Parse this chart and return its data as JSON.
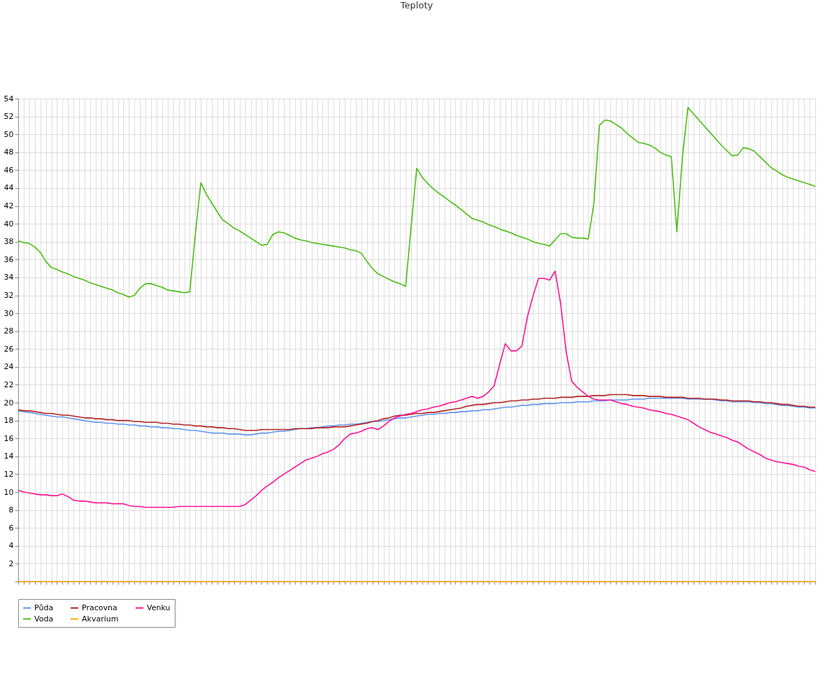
{
  "chart_data": {
    "type": "line",
    "title": "Teploty",
    "categories": [
      null,
      null,
      null,
      null,
      null,
      null,
      null,
      null,
      null,
      null,
      null,
      null,
      null,
      null,
      null,
      null,
      null,
      null,
      null,
      null,
      null,
      null,
      null,
      null,
      null,
      null,
      null,
      null,
      null,
      null,
      null,
      null,
      null,
      null,
      null,
      null,
      null,
      null,
      null,
      null,
      null,
      null,
      null,
      null,
      null,
      null,
      null,
      null,
      null,
      null,
      null,
      null,
      null,
      null,
      null,
      null,
      null,
      null,
      null,
      null,
      null,
      null,
      null,
      null,
      null,
      null,
      null,
      null,
      null,
      null,
      null,
      null,
      null,
      null,
      null,
      null,
      null,
      null,
      null,
      null,
      null,
      null,
      null,
      null,
      null,
      null,
      null,
      null,
      null,
      null,
      null,
      null,
      null,
      null,
      null,
      null,
      null,
      null,
      null,
      null,
      null,
      null,
      null,
      null,
      null,
      null,
      null,
      null,
      null,
      null,
      null,
      null,
      null,
      null,
      null,
      null,
      null,
      null,
      null,
      null,
      null,
      null,
      null,
      null,
      null,
      null,
      null,
      null,
      null,
      null,
      null,
      null,
      null,
      null,
      null,
      null,
      null,
      null,
      null,
      null,
      null,
      null,
      null,
      null,
      null
    ],
    "ylim": [
      0,
      54
    ],
    "yticks": [
      {
        "value": 0,
        "label": null
      },
      2,
      4,
      6,
      8,
      10,
      12,
      14,
      16,
      18,
      20,
      22,
      24,
      26,
      28,
      30,
      32,
      34,
      36,
      38,
      40,
      42,
      44,
      46,
      48,
      50,
      52,
      54
    ],
    "grid": true,
    "tick_labels": "y",
    "legend": "bottom",
    "line_style": "solid",
    "marker": "none",
    "series": [
      {
        "name": "Půda",
        "color": "#6495ed",
        "values": [
          19.1,
          19.0,
          18.9,
          18.8,
          18.7,
          18.6,
          18.5,
          18.4,
          18.4,
          18.3,
          18.2,
          18.1,
          18.0,
          17.9,
          17.8,
          17.8,
          17.7,
          17.7,
          17.6,
          17.6,
          17.5,
          17.5,
          17.4,
          17.4,
          17.3,
          17.3,
          17.2,
          17.2,
          17.1,
          17.1,
          17.0,
          16.9,
          16.9,
          16.8,
          16.7,
          16.6,
          16.6,
          16.6,
          16.5,
          16.5,
          16.5,
          16.4,
          16.4,
          16.5,
          16.6,
          16.6,
          16.7,
          16.8,
          16.8,
          16.9,
          17.0,
          17.1,
          17.1,
          17.2,
          17.2,
          17.3,
          17.4,
          17.4,
          17.5,
          17.5,
          17.6,
          17.6,
          17.7,
          17.8,
          17.9,
          17.9,
          18.0,
          18.1,
          18.2,
          18.3,
          18.3,
          18.4,
          18.5,
          18.6,
          18.7,
          18.7,
          18.8,
          18.8,
          18.9,
          18.9,
          19.0,
          19.0,
          19.1,
          19.1,
          19.2,
          19.2,
          19.3,
          19.4,
          19.5,
          19.5,
          19.6,
          19.7,
          19.7,
          19.8,
          19.8,
          19.9,
          19.9,
          19.9,
          20.0,
          20.0,
          20.0,
          20.1,
          20.1,
          20.1,
          20.2,
          20.2,
          20.2,
          20.3,
          20.3,
          20.3,
          20.3,
          20.4,
          20.4,
          20.4,
          20.5,
          20.5,
          20.5,
          20.5,
          20.5,
          20.5,
          20.5,
          20.4,
          20.4,
          20.4,
          20.4,
          20.4,
          20.3,
          20.2,
          20.2,
          20.1,
          20.1,
          20.1,
          20.1,
          20.0,
          20.0,
          19.9,
          19.9,
          19.8,
          19.7,
          19.7,
          19.6,
          19.5,
          19.5,
          19.4,
          19.4
        ]
      },
      {
        "name": "Pracovna",
        "color": "#b22222",
        "values": [
          19.2,
          19.1,
          19.1,
          19.0,
          18.9,
          18.8,
          18.8,
          18.7,
          18.6,
          18.6,
          18.5,
          18.4,
          18.3,
          18.3,
          18.2,
          18.2,
          18.1,
          18.1,
          18.0,
          18.0,
          18.0,
          17.9,
          17.9,
          17.8,
          17.8,
          17.8,
          17.7,
          17.7,
          17.6,
          17.6,
          17.5,
          17.5,
          17.4,
          17.4,
          17.3,
          17.3,
          17.2,
          17.2,
          17.1,
          17.1,
          17.0,
          16.9,
          16.9,
          16.9,
          17.0,
          17.0,
          17.0,
          17.0,
          17.0,
          17.0,
          17.1,
          17.1,
          17.1,
          17.1,
          17.2,
          17.2,
          17.2,
          17.3,
          17.3,
          17.3,
          17.4,
          17.5,
          17.6,
          17.7,
          17.9,
          18.0,
          18.2,
          18.3,
          18.5,
          18.6,
          18.6,
          18.7,
          18.8,
          18.8,
          18.9,
          18.9,
          19.0,
          19.1,
          19.2,
          19.3,
          19.4,
          19.6,
          19.7,
          19.8,
          19.8,
          19.9,
          20.0,
          20.0,
          20.1,
          20.2,
          20.2,
          20.3,
          20.3,
          20.4,
          20.4,
          20.5,
          20.5,
          20.5,
          20.6,
          20.6,
          20.6,
          20.7,
          20.7,
          20.7,
          20.8,
          20.8,
          20.8,
          20.9,
          20.9,
          20.9,
          20.9,
          20.8,
          20.8,
          20.8,
          20.7,
          20.7,
          20.7,
          20.6,
          20.6,
          20.6,
          20.6,
          20.5,
          20.5,
          20.5,
          20.4,
          20.4,
          20.4,
          20.3,
          20.3,
          20.2,
          20.2,
          20.2,
          20.2,
          20.1,
          20.1,
          20.0,
          20.0,
          19.9,
          19.8,
          19.8,
          19.7,
          19.6,
          19.6,
          19.5,
          19.5
        ]
      },
      {
        "name": "Venku",
        "color": "#ff1493",
        "values": [
          10.2,
          10.0,
          9.9,
          9.8,
          9.7,
          9.7,
          9.6,
          9.6,
          9.8,
          9.5,
          9.1,
          9.0,
          9.0,
          8.9,
          8.8,
          8.8,
          8.8,
          8.7,
          8.7,
          8.7,
          8.5,
          8.4,
          8.4,
          8.3,
          8.3,
          8.3,
          8.3,
          8.3,
          8.3,
          8.4,
          8.4,
          8.4,
          8.4,
          8.4,
          8.4,
          8.4,
          8.4,
          8.4,
          8.4,
          8.4,
          8.4,
          8.6,
          9.1,
          9.6,
          10.2,
          10.7,
          11.1,
          11.6,
          12.0,
          12.4,
          12.8,
          13.2,
          13.6,
          13.8,
          14.0,
          14.3,
          14.5,
          14.8,
          15.3,
          16.0,
          16.5,
          16.6,
          16.8,
          17.1,
          17.2,
          17.0,
          17.4,
          17.9,
          18.3,
          18.5,
          18.7,
          18.8,
          19.0,
          19.2,
          19.3,
          19.5,
          19.6,
          19.8,
          20.0,
          20.1,
          20.3,
          20.5,
          20.7,
          20.5,
          20.7,
          21.2,
          21.9,
          24.3,
          26.6,
          25.8,
          25.8,
          26.3,
          29.6,
          31.9,
          33.9,
          33.9,
          33.7,
          34.7,
          31.1,
          25.7,
          22.4,
          21.7,
          21.2,
          20.7,
          20.4,
          20.3,
          20.3,
          20.3,
          20.1,
          19.9,
          19.8,
          19.6,
          19.5,
          19.4,
          19.2,
          19.1,
          19.0,
          18.8,
          18.7,
          18.5,
          18.3,
          18.1,
          17.7,
          17.3,
          17.0,
          16.7,
          16.5,
          16.3,
          16.1,
          15.8,
          15.6,
          15.2,
          14.8,
          14.5,
          14.2,
          13.8,
          13.6,
          13.4,
          13.3,
          13.2,
          13.1,
          12.9,
          12.8,
          12.5,
          12.3
        ]
      },
      {
        "name": "Voda",
        "color": "#4cbb17",
        "values": [
          38.1,
          37.9,
          37.8,
          37.4,
          36.8,
          35.8,
          35.1,
          34.9,
          34.6,
          34.4,
          34.1,
          33.9,
          33.7,
          33.4,
          33.2,
          33.0,
          32.8,
          32.6,
          32.3,
          32.1,
          31.8,
          32.0,
          32.8,
          33.3,
          33.3,
          33.1,
          32.9,
          32.6,
          32.5,
          32.4,
          32.3,
          32.4,
          38.8,
          44.6,
          43.3,
          42.3,
          41.3,
          40.4,
          40.0,
          39.5,
          39.2,
          38.8,
          38.4,
          38.0,
          37.6,
          37.7,
          38.8,
          39.1,
          39.0,
          38.7,
          38.4,
          38.2,
          38.1,
          37.9,
          37.8,
          37.7,
          37.6,
          37.5,
          37.4,
          37.3,
          37.1,
          37.0,
          36.7,
          35.8,
          35.0,
          34.4,
          34.1,
          33.8,
          33.5,
          33.3,
          33.0,
          39.7,
          46.2,
          45.2,
          44.5,
          43.9,
          43.4,
          43.0,
          42.5,
          42.1,
          41.6,
          41.1,
          40.6,
          40.4,
          40.2,
          39.9,
          39.7,
          39.4,
          39.2,
          39.0,
          38.7,
          38.5,
          38.3,
          38.0,
          37.8,
          37.7,
          37.5,
          38.2,
          38.9,
          38.9,
          38.5,
          38.4,
          38.4,
          38.3,
          42.2,
          51.0,
          51.6,
          51.5,
          51.1,
          50.7,
          50.1,
          49.6,
          49.1,
          49.0,
          48.8,
          48.5,
          48.0,
          47.7,
          47.5,
          39.1,
          47.4,
          53.0,
          52.3,
          51.6,
          50.9,
          50.2,
          49.5,
          48.8,
          48.2,
          47.6,
          47.7,
          48.5,
          48.4,
          48.1,
          47.5,
          46.9,
          46.3,
          45.9,
          45.5,
          45.2,
          45.0,
          44.8,
          44.6,
          44.4,
          44.2
        ]
      },
      {
        "name": "Akvarium",
        "color": "#ffa500",
        "values": [
          0,
          0,
          0,
          0,
          0,
          0,
          0,
          0,
          0,
          0,
          0,
          0,
          0,
          0,
          0,
          0,
          0,
          0,
          0,
          0,
          0,
          0,
          0,
          0,
          0,
          0,
          0,
          0,
          0,
          0,
          0,
          0,
          0,
          0,
          0,
          0,
          0,
          0,
          0,
          0,
          0,
          0,
          0,
          0,
          0,
          0,
          0,
          0,
          0,
          0,
          0,
          0,
          0,
          0,
          0,
          0,
          0,
          0,
          0,
          0,
          0,
          0,
          0,
          0,
          0,
          0,
          0,
          0,
          0,
          0,
          0,
          0,
          0,
          0,
          0,
          0,
          0,
          0,
          0,
          0,
          0,
          0,
          0,
          0,
          0,
          0,
          0,
          0,
          0,
          0,
          0,
          0,
          0,
          0,
          0,
          0,
          0,
          0,
          0,
          0,
          0,
          0,
          0,
          0,
          0,
          0,
          0,
          0,
          0,
          0,
          0,
          0,
          0,
          0,
          0,
          0,
          0,
          0,
          0,
          0,
          0,
          0,
          0,
          0,
          0,
          0,
          0,
          0,
          0,
          0,
          0,
          0,
          0,
          0,
          0,
          0,
          0,
          0,
          0,
          0,
          0,
          0,
          0,
          0,
          0
        ]
      }
    ]
  }
}
